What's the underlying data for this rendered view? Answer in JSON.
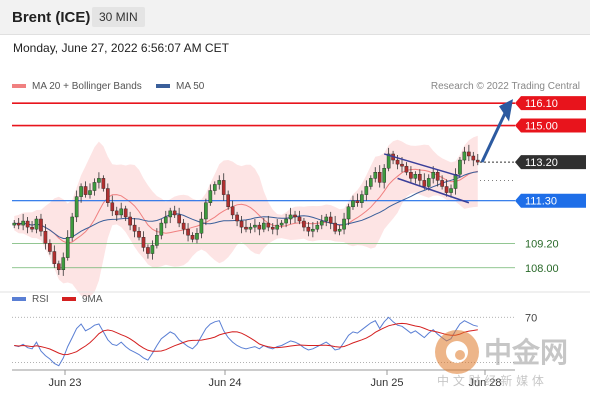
{
  "header": {
    "instrument": "Brent (ICE)",
    "interval": "30 MIN",
    "datetime": "Monday, June 27, 2022 6:56:07 AM CET"
  },
  "credit": "Research © 2022 Trading Central",
  "colors": {
    "resistance": "#e8141c",
    "support": "#1e6ee8",
    "price": "#303030",
    "target": "#6eb46e",
    "ma20": "#f08080",
    "ma50": "#3a5f9a",
    "rsi": "#5a7fd4",
    "rsi_ma": "#d42020",
    "arrow": "#2c5aa0"
  },
  "watermark": {
    "glyphs": "中金网",
    "caption": "中 文 财 经 新 媒 体"
  },
  "chart_data": [
    {
      "type": "candlestick",
      "legend": [
        {
          "name": "MA 20 + Bollinger Bands",
          "color": "#f08080"
        },
        {
          "name": "MA 50",
          "color": "#3a5f9a"
        }
      ],
      "legend_position": "top-left",
      "ylim": [
        107.3,
        116.6
      ],
      "x_ticks": [
        "Jun 23",
        "Jun 24",
        "Jun 25",
        "Jun 28"
      ],
      "levels": [
        {
          "label": "116.10",
          "value": 116.1,
          "kind": "resistance"
        },
        {
          "label": "115.00",
          "value": 115.0,
          "kind": "resistance"
        },
        {
          "label": "113.20",
          "value": 113.2,
          "kind": "price"
        },
        {
          "label": "111.30",
          "value": 111.3,
          "kind": "support"
        },
        {
          "label": "109.20",
          "value": 109.2,
          "kind": "target"
        },
        {
          "label": "108.00",
          "value": 108.0,
          "kind": "target"
        }
      ],
      "close": [
        110.2,
        110.1,
        110.3,
        110.0,
        109.9,
        110.4,
        109.8,
        109.2,
        108.8,
        108.2,
        107.9,
        108.5,
        109.5,
        110.5,
        111.5,
        112.0,
        111.6,
        111.8,
        112.2,
        112.4,
        111.9,
        111.2,
        110.8,
        110.6,
        110.9,
        110.5,
        110.1,
        109.8,
        109.5,
        109.0,
        108.7,
        109.1,
        109.6,
        110.2,
        110.5,
        110.8,
        110.6,
        110.2,
        109.9,
        109.6,
        109.4,
        109.7,
        110.4,
        111.2,
        111.8,
        112.1,
        112.3,
        111.6,
        111.0,
        110.6,
        110.3,
        110.0,
        109.9,
        110.0,
        110.1,
        109.9,
        110.2,
        110.0,
        109.9,
        110.1,
        110.2,
        110.4,
        110.6,
        110.5,
        110.3,
        110.0,
        109.8,
        109.9,
        110.1,
        110.3,
        110.5,
        110.2,
        109.8,
        109.9,
        110.4,
        111.0,
        111.3,
        111.2,
        111.6,
        112.0,
        112.4,
        112.7,
        112.2,
        112.9,
        113.6,
        113.3,
        113.1,
        113.0,
        112.7,
        112.4,
        112.6,
        112.3,
        112.0,
        112.4,
        112.7,
        112.3,
        112.0,
        111.7,
        111.9,
        112.6,
        113.3,
        113.7,
        113.5,
        113.3,
        113.2
      ]
    },
    {
      "type": "line",
      "title": "",
      "series": [
        {
          "name": "RSI",
          "color": "#5a7fd4"
        },
        {
          "name": "9MA",
          "color": "#d42020"
        }
      ],
      "ylim": [
        25,
        80
      ],
      "reference_label": "70",
      "rsi": [
        45,
        44,
        46,
        43,
        42,
        48,
        40,
        36,
        33,
        29,
        27,
        34,
        44,
        52,
        60,
        64,
        58,
        60,
        63,
        64,
        57,
        50,
        46,
        45,
        48,
        44,
        41,
        39,
        37,
        34,
        32,
        38,
        45,
        51,
        54,
        57,
        55,
        50,
        47,
        44,
        42,
        46,
        53,
        60,
        64,
        66,
        67,
        58,
        52,
        48,
        45,
        43,
        42,
        43,
        44,
        42,
        45,
        43,
        42,
        44,
        45,
        47,
        49,
        48,
        46,
        43,
        41,
        42,
        44,
        46,
        48,
        45,
        41,
        42,
        48,
        54,
        57,
        56,
        59,
        62,
        65,
        67,
        60,
        66,
        70,
        66,
        63,
        62,
        59,
        56,
        58,
        55,
        52,
        56,
        59,
        55,
        52,
        49,
        51,
        58,
        64,
        67,
        65,
        63,
        62
      ]
    }
  ]
}
